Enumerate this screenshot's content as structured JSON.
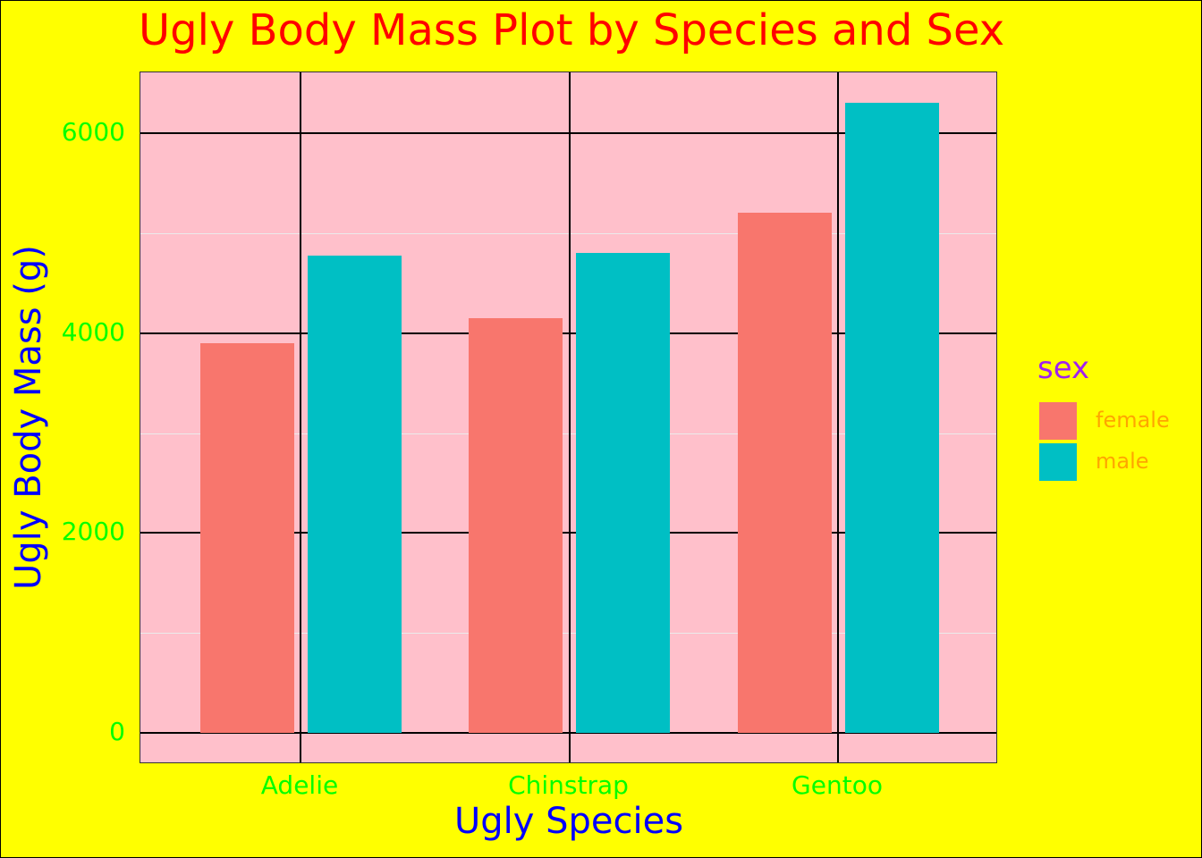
{
  "chart_data": {
    "type": "bar",
    "title": "Ugly Body Mass Plot by Species and Sex",
    "xlabel": "Ugly Species",
    "ylabel": "Ugly Body Mass (g)",
    "categories": [
      "Adelie",
      "Chinstrap",
      "Gentoo"
    ],
    "series": [
      {
        "name": "female",
        "color": "#f8766d",
        "values": [
          3900,
          4150,
          5200
        ]
      },
      {
        "name": "male",
        "color": "#00bfc4",
        "values": [
          4775,
          4800,
          6300
        ]
      }
    ],
    "ylim": [
      -300,
      6600
    ],
    "yticks": [
      0,
      2000,
      4000,
      6000
    ],
    "ytick_labels": [
      "0",
      "2000",
      "4000",
      "6000"
    ],
    "grid": true,
    "legend": {
      "title": "sex",
      "position": "right",
      "entries": [
        "female",
        "male"
      ]
    },
    "colors": {
      "background": "#ffff00",
      "panel": "#ffc0cb",
      "title": "#ff0000",
      "axis_title": "#0000ff",
      "tick_labels": "#00ff00",
      "legend_title": "#a020f0",
      "legend_labels": "#ffa500"
    }
  }
}
